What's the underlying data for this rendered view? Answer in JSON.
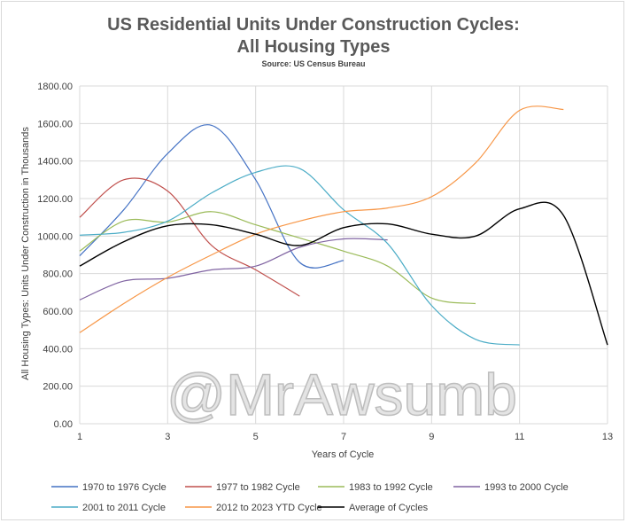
{
  "watermark": "@MrAwsumb",
  "chart_data": {
    "type": "line",
    "title_line1": "US Residential Units Under Construction Cycles:",
    "title_line2": "All Housing Types",
    "subtitle": "Source: US Census Bureau",
    "xlabel": "Years of Cycle",
    "ylabel": "All Housing Types: Units Under Construction in Thousands",
    "xlim": [
      1,
      13
    ],
    "ylim": [
      0,
      1800
    ],
    "x_ticks": [
      "1",
      "3",
      "5",
      "7",
      "9",
      "11",
      "13"
    ],
    "y_ticks": [
      "0.00",
      "200.00",
      "400.00",
      "600.00",
      "800.00",
      "1000.00",
      "1200.00",
      "1400.00",
      "1600.00",
      "1800.00"
    ],
    "grid": true,
    "legend_position": "bottom",
    "series": [
      {
        "name": "1970 to 1976 Cycle",
        "color": "#4472c4",
        "points": [
          [
            1,
            895
          ],
          [
            2,
            1140
          ],
          [
            3,
            1440
          ],
          [
            4,
            1590
          ],
          [
            5,
            1300
          ],
          [
            6,
            860
          ],
          [
            7,
            870
          ]
        ]
      },
      {
        "name": "1977 to 1982 Cycle",
        "color": "#c0504d",
        "points": [
          [
            1,
            1100
          ],
          [
            2,
            1300
          ],
          [
            3,
            1240
          ],
          [
            4,
            950
          ],
          [
            5,
            820
          ],
          [
            6,
            680
          ]
        ]
      },
      {
        "name": "1983 to 1992 Cycle",
        "color": "#9bbb59",
        "points": [
          [
            1,
            920
          ],
          [
            2,
            1080
          ],
          [
            3,
            1075
          ],
          [
            4,
            1130
          ],
          [
            5,
            1060
          ],
          [
            6,
            990
          ],
          [
            7,
            920
          ],
          [
            8,
            840
          ],
          [
            9,
            670
          ],
          [
            10,
            640
          ]
        ]
      },
      {
        "name": "1993 to 2000 Cycle",
        "color": "#8064a2",
        "points": [
          [
            1,
            660
          ],
          [
            2,
            760
          ],
          [
            3,
            775
          ],
          [
            4,
            820
          ],
          [
            5,
            840
          ],
          [
            6,
            940
          ],
          [
            7,
            985
          ],
          [
            8,
            980
          ]
        ]
      },
      {
        "name": "2001 to 2011 Cycle",
        "color": "#4bacc6",
        "points": [
          [
            1,
            1005
          ],
          [
            2,
            1020
          ],
          [
            3,
            1080
          ],
          [
            4,
            1230
          ],
          [
            5,
            1340
          ],
          [
            6,
            1360
          ],
          [
            7,
            1140
          ],
          [
            8,
            960
          ],
          [
            9,
            630
          ],
          [
            10,
            450
          ],
          [
            11,
            420
          ]
        ]
      },
      {
        "name": "2012 to 2023 YTD Cycle",
        "color": "#f79646",
        "points": [
          [
            1,
            485
          ],
          [
            2,
            640
          ],
          [
            3,
            780
          ],
          [
            4,
            900
          ],
          [
            5,
            1010
          ],
          [
            6,
            1080
          ],
          [
            7,
            1130
          ],
          [
            8,
            1150
          ],
          [
            9,
            1210
          ],
          [
            10,
            1390
          ],
          [
            11,
            1670
          ],
          [
            12,
            1675
          ]
        ]
      },
      {
        "name": "Average of Cycles",
        "color": "#000000",
        "points": [
          [
            1,
            840
          ],
          [
            2,
            970
          ],
          [
            3,
            1055
          ],
          [
            4,
            1060
          ],
          [
            5,
            1010
          ],
          [
            6,
            950
          ],
          [
            7,
            1045
          ],
          [
            8,
            1065
          ],
          [
            9,
            1010
          ],
          [
            10,
            1000
          ],
          [
            11,
            1145
          ],
          [
            12,
            1110
          ],
          [
            13,
            420
          ]
        ]
      }
    ]
  }
}
